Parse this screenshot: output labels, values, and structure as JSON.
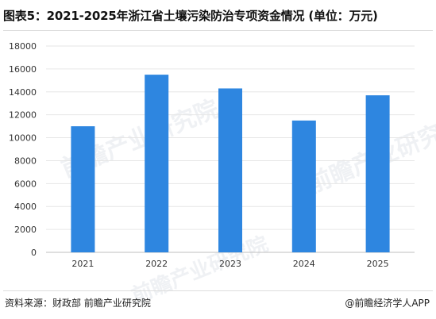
{
  "title": "图表5：2021-2025年浙江省土壤污染防治专项资金情况 (单位：万元)",
  "source": "资料来源：财政部 前瞻产业研究院",
  "credit": "@前瞻经济学人APP",
  "watermark": "前瞻产业研究院",
  "colors": {
    "bar": "#2e86e0",
    "grid": "#e6e6e6",
    "axis": "#bfbfbf"
  },
  "chart_data": {
    "type": "bar",
    "title": "图表5：2021-2025年浙江省土壤污染防治专项资金情况 (单位：万元)",
    "categories": [
      "2021",
      "2022",
      "2023",
      "2024",
      "2025"
    ],
    "values": [
      11000,
      15500,
      14300,
      11500,
      13700
    ],
    "ylim": [
      0,
      18000
    ],
    "yticks": [
      0,
      2000,
      4000,
      6000,
      8000,
      10000,
      12000,
      14000,
      16000,
      18000
    ],
    "xlabel": "",
    "ylabel": "",
    "grid": true
  }
}
